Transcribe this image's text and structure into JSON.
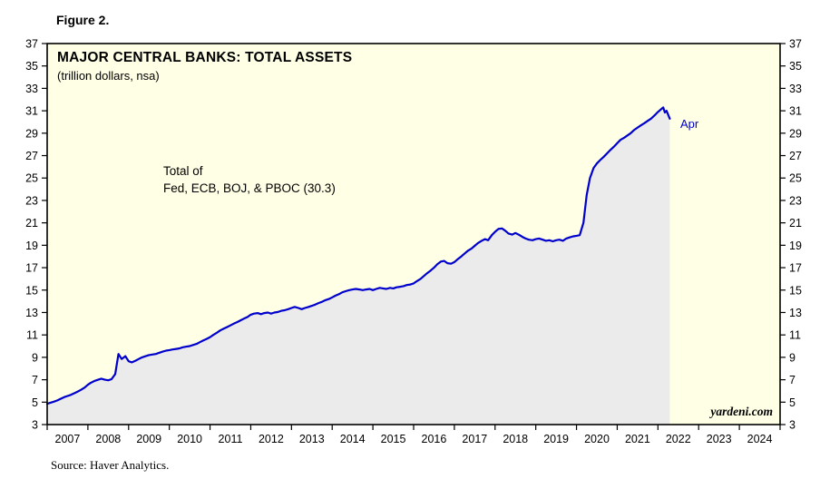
{
  "figure_label": "Figure 2.",
  "source_note": "Source: Haver Analytics.",
  "chart_data": {
    "type": "line",
    "title": "MAJOR CENTRAL BANKS: TOTAL ASSETS",
    "subtitle": "(trillion dollars, nsa)",
    "annotation_line1": "Total of",
    "annotation_line2": "Fed, ECB, BOJ, & PBOC (30.3)",
    "end_point_label": "Apr",
    "end_point_value": 30.3,
    "watermark": "yardeni.com",
    "grid": false,
    "legend_position": "none",
    "ylim": [
      3,
      37
    ],
    "yticks": [
      3,
      5,
      7,
      9,
      11,
      13,
      15,
      17,
      19,
      21,
      23,
      25,
      27,
      29,
      31,
      33,
      35,
      37
    ],
    "x_range": [
      2007,
      2025
    ],
    "x_year_labels": [
      "2007",
      "2008",
      "2009",
      "2010",
      "2011",
      "2012",
      "2013",
      "2014",
      "2015",
      "2016",
      "2017",
      "2018",
      "2019",
      "2020",
      "2021",
      "2022",
      "2023",
      "2024"
    ],
    "colors": {
      "line": "#0000CD",
      "area_fill": "#EBEBEB",
      "plot_background": "#FFFFE6",
      "frame": "#000000",
      "end_label_text": "#0000CD"
    },
    "series": [
      {
        "name": "Total of Fed, ECB, BOJ, & PBOC",
        "points": [
          [
            2007.0,
            4.85
          ],
          [
            2007.08,
            4.95
          ],
          [
            2007.17,
            5.05
          ],
          [
            2007.25,
            5.15
          ],
          [
            2007.33,
            5.3
          ],
          [
            2007.42,
            5.45
          ],
          [
            2007.5,
            5.55
          ],
          [
            2007.58,
            5.65
          ],
          [
            2007.67,
            5.8
          ],
          [
            2007.75,
            5.95
          ],
          [
            2007.83,
            6.1
          ],
          [
            2007.92,
            6.3
          ],
          [
            2008.0,
            6.55
          ],
          [
            2008.08,
            6.75
          ],
          [
            2008.17,
            6.9
          ],
          [
            2008.25,
            7.0
          ],
          [
            2008.33,
            7.1
          ],
          [
            2008.42,
            7.0
          ],
          [
            2008.5,
            6.95
          ],
          [
            2008.58,
            7.05
          ],
          [
            2008.67,
            7.5
          ],
          [
            2008.75,
            9.3
          ],
          [
            2008.83,
            8.85
          ],
          [
            2008.92,
            9.1
          ],
          [
            2009.0,
            8.65
          ],
          [
            2009.08,
            8.55
          ],
          [
            2009.17,
            8.7
          ],
          [
            2009.25,
            8.85
          ],
          [
            2009.33,
            9.0
          ],
          [
            2009.42,
            9.1
          ],
          [
            2009.5,
            9.2
          ],
          [
            2009.58,
            9.25
          ],
          [
            2009.67,
            9.3
          ],
          [
            2009.75,
            9.4
          ],
          [
            2009.83,
            9.5
          ],
          [
            2009.92,
            9.6
          ],
          [
            2010.0,
            9.65
          ],
          [
            2010.08,
            9.7
          ],
          [
            2010.17,
            9.75
          ],
          [
            2010.25,
            9.8
          ],
          [
            2010.33,
            9.9
          ],
          [
            2010.42,
            9.95
          ],
          [
            2010.5,
            10.0
          ],
          [
            2010.58,
            10.1
          ],
          [
            2010.67,
            10.2
          ],
          [
            2010.75,
            10.35
          ],
          [
            2010.83,
            10.5
          ],
          [
            2010.92,
            10.65
          ],
          [
            2011.0,
            10.8
          ],
          [
            2011.08,
            11.0
          ],
          [
            2011.17,
            11.2
          ],
          [
            2011.25,
            11.4
          ],
          [
            2011.33,
            11.55
          ],
          [
            2011.42,
            11.7
          ],
          [
            2011.5,
            11.85
          ],
          [
            2011.58,
            12.0
          ],
          [
            2011.67,
            12.15
          ],
          [
            2011.75,
            12.3
          ],
          [
            2011.83,
            12.45
          ],
          [
            2011.92,
            12.6
          ],
          [
            2012.0,
            12.8
          ],
          [
            2012.08,
            12.9
          ],
          [
            2012.17,
            12.95
          ],
          [
            2012.25,
            12.85
          ],
          [
            2012.33,
            12.95
          ],
          [
            2012.42,
            13.0
          ],
          [
            2012.5,
            12.9
          ],
          [
            2012.58,
            13.0
          ],
          [
            2012.67,
            13.05
          ],
          [
            2012.75,
            13.15
          ],
          [
            2012.83,
            13.2
          ],
          [
            2012.92,
            13.3
          ],
          [
            2013.0,
            13.4
          ],
          [
            2013.08,
            13.5
          ],
          [
            2013.17,
            13.4
          ],
          [
            2013.25,
            13.3
          ],
          [
            2013.33,
            13.4
          ],
          [
            2013.42,
            13.5
          ],
          [
            2013.5,
            13.6
          ],
          [
            2013.58,
            13.7
          ],
          [
            2013.67,
            13.85
          ],
          [
            2013.75,
            13.95
          ],
          [
            2013.83,
            14.1
          ],
          [
            2013.92,
            14.2
          ],
          [
            2014.0,
            14.35
          ],
          [
            2014.08,
            14.5
          ],
          [
            2014.17,
            14.65
          ],
          [
            2014.25,
            14.8
          ],
          [
            2014.33,
            14.9
          ],
          [
            2014.42,
            15.0
          ],
          [
            2014.5,
            15.05
          ],
          [
            2014.58,
            15.1
          ],
          [
            2014.67,
            15.05
          ],
          [
            2014.75,
            15.0
          ],
          [
            2014.83,
            15.05
          ],
          [
            2014.92,
            15.1
          ],
          [
            2015.0,
            15.0
          ],
          [
            2015.08,
            15.1
          ],
          [
            2015.17,
            15.2
          ],
          [
            2015.25,
            15.15
          ],
          [
            2015.33,
            15.1
          ],
          [
            2015.42,
            15.2
          ],
          [
            2015.5,
            15.15
          ],
          [
            2015.58,
            15.25
          ],
          [
            2015.67,
            15.3
          ],
          [
            2015.75,
            15.35
          ],
          [
            2015.83,
            15.45
          ],
          [
            2015.92,
            15.5
          ],
          [
            2016.0,
            15.6
          ],
          [
            2016.08,
            15.8
          ],
          [
            2016.17,
            16.0
          ],
          [
            2016.25,
            16.25
          ],
          [
            2016.33,
            16.5
          ],
          [
            2016.42,
            16.75
          ],
          [
            2016.5,
            17.0
          ],
          [
            2016.58,
            17.3
          ],
          [
            2016.67,
            17.55
          ],
          [
            2016.75,
            17.6
          ],
          [
            2016.83,
            17.4
          ],
          [
            2016.92,
            17.35
          ],
          [
            2017.0,
            17.5
          ],
          [
            2017.08,
            17.75
          ],
          [
            2017.17,
            18.0
          ],
          [
            2017.25,
            18.25
          ],
          [
            2017.33,
            18.5
          ],
          [
            2017.42,
            18.7
          ],
          [
            2017.5,
            18.95
          ],
          [
            2017.58,
            19.2
          ],
          [
            2017.67,
            19.4
          ],
          [
            2017.75,
            19.55
          ],
          [
            2017.83,
            19.45
          ],
          [
            2017.92,
            19.9
          ],
          [
            2018.0,
            20.2
          ],
          [
            2018.08,
            20.45
          ],
          [
            2018.17,
            20.5
          ],
          [
            2018.25,
            20.3
          ],
          [
            2018.33,
            20.05
          ],
          [
            2018.42,
            19.95
          ],
          [
            2018.5,
            20.1
          ],
          [
            2018.58,
            19.95
          ],
          [
            2018.67,
            19.75
          ],
          [
            2018.75,
            19.6
          ],
          [
            2018.83,
            19.5
          ],
          [
            2018.92,
            19.45
          ],
          [
            2019.0,
            19.55
          ],
          [
            2019.08,
            19.6
          ],
          [
            2019.17,
            19.5
          ],
          [
            2019.25,
            19.4
          ],
          [
            2019.33,
            19.45
          ],
          [
            2019.42,
            19.35
          ],
          [
            2019.5,
            19.45
          ],
          [
            2019.58,
            19.5
          ],
          [
            2019.67,
            19.4
          ],
          [
            2019.75,
            19.6
          ],
          [
            2019.83,
            19.7
          ],
          [
            2019.92,
            19.8
          ],
          [
            2020.0,
            19.85
          ],
          [
            2020.08,
            19.9
          ],
          [
            2020.17,
            21.0
          ],
          [
            2020.25,
            23.5
          ],
          [
            2020.33,
            25.0
          ],
          [
            2020.42,
            25.9
          ],
          [
            2020.5,
            26.3
          ],
          [
            2020.58,
            26.6
          ],
          [
            2020.67,
            26.9
          ],
          [
            2020.75,
            27.2
          ],
          [
            2020.83,
            27.5
          ],
          [
            2020.92,
            27.8
          ],
          [
            2021.0,
            28.1
          ],
          [
            2021.08,
            28.4
          ],
          [
            2021.17,
            28.6
          ],
          [
            2021.25,
            28.8
          ],
          [
            2021.33,
            29.0
          ],
          [
            2021.42,
            29.3
          ],
          [
            2021.5,
            29.5
          ],
          [
            2021.58,
            29.7
          ],
          [
            2021.67,
            29.9
          ],
          [
            2021.75,
            30.1
          ],
          [
            2021.83,
            30.3
          ],
          [
            2021.92,
            30.6
          ],
          [
            2022.0,
            30.9
          ],
          [
            2022.08,
            31.15
          ],
          [
            2022.13,
            31.3
          ],
          [
            2022.17,
            30.85
          ],
          [
            2022.21,
            31.0
          ],
          [
            2022.29,
            30.3
          ]
        ]
      }
    ]
  }
}
